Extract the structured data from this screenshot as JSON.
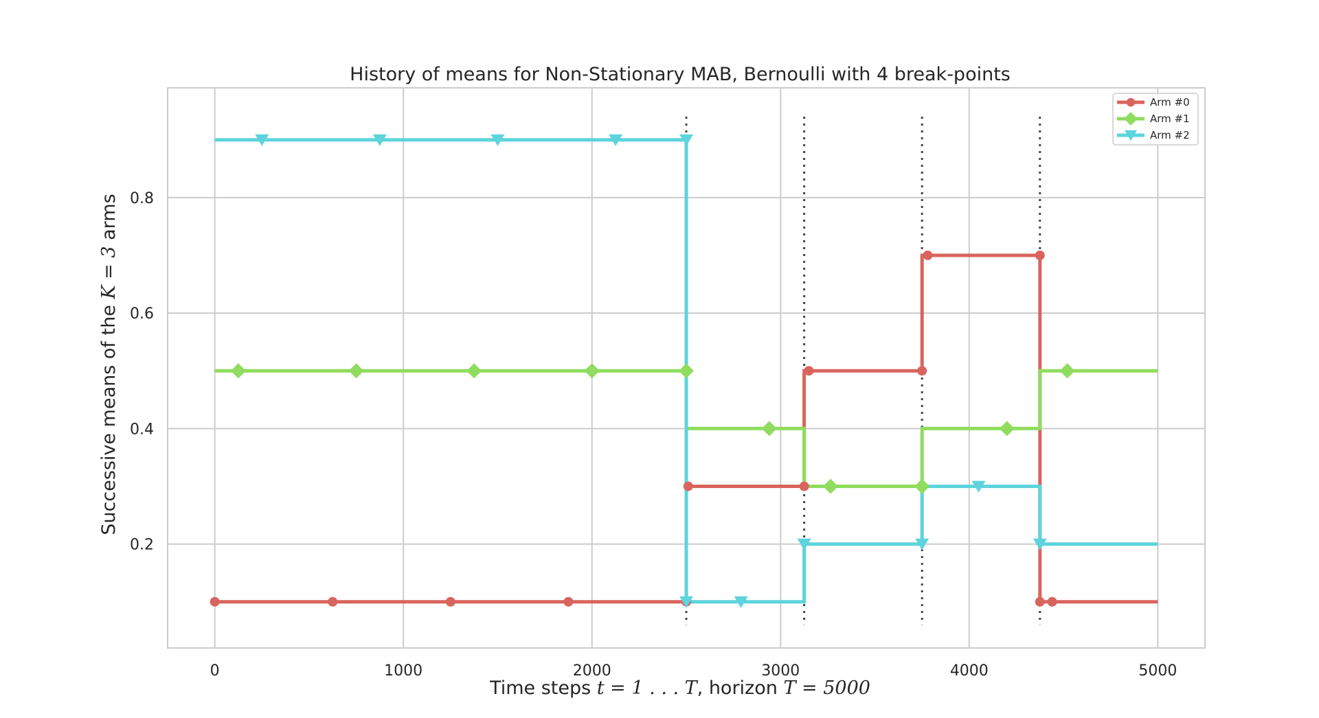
{
  "chart_data": {
    "type": "line",
    "title": "History of means for Non-Stationary MAB, Bernoulli with 4 break-points",
    "xlabel": {
      "prefix": "Time steps ",
      "math1": "t = 1 . . . T",
      "middle": ", horizon ",
      "math2": "T = 5000"
    },
    "ylabel": {
      "prefix": "Successive means of the ",
      "math": "K = 3",
      "suffix": " arms"
    },
    "xlim": [
      -250,
      5250
    ],
    "ylim": [
      0.02,
      0.99
    ],
    "xticks": [
      0,
      1000,
      2000,
      3000,
      4000,
      5000
    ],
    "xtick_labels": [
      "0",
      "1000",
      "2000",
      "3000",
      "4000",
      "5000"
    ],
    "yticks": [
      0.2,
      0.4,
      0.6,
      0.8
    ],
    "ytick_labels": [
      "0.2",
      "0.4",
      "0.6",
      "0.8"
    ],
    "grid": true,
    "legend_position": "top-right",
    "breakpoints": [
      2500,
      3125,
      3750,
      4375
    ],
    "breakpoint_range": [
      0.06,
      0.94
    ],
    "series": [
      {
        "name": "Arm #0",
        "color": "#d9645e",
        "marker": "circle",
        "points": [
          [
            0,
            0.1
          ],
          [
            2500,
            0.1
          ],
          [
            2500,
            0.3
          ],
          [
            3125,
            0.3
          ],
          [
            3125,
            0.5
          ],
          [
            3750,
            0.5
          ],
          [
            3750,
            0.7
          ],
          [
            4375,
            0.7
          ],
          [
            4375,
            0.1
          ],
          [
            5000,
            0.1
          ]
        ],
        "markers": [
          [
            0,
            0.1
          ],
          [
            625,
            0.1
          ],
          [
            1250,
            0.1
          ],
          [
            1875,
            0.1
          ],
          [
            2500,
            0.1
          ],
          [
            2510,
            0.3
          ],
          [
            3125,
            0.3
          ],
          [
            3150,
            0.5
          ],
          [
            3750,
            0.5
          ],
          [
            3780,
            0.7
          ],
          [
            4375,
            0.7
          ],
          [
            4375,
            0.1
          ],
          [
            4440,
            0.1
          ]
        ]
      },
      {
        "name": "Arm #1",
        "color": "#8fdc5e",
        "marker": "diamond",
        "points": [
          [
            0,
            0.5
          ],
          [
            2500,
            0.5
          ],
          [
            2500,
            0.4
          ],
          [
            3125,
            0.4
          ],
          [
            3125,
            0.3
          ],
          [
            3750,
            0.3
          ],
          [
            3750,
            0.4
          ],
          [
            4375,
            0.4
          ],
          [
            4375,
            0.5
          ],
          [
            5000,
            0.5
          ]
        ],
        "markers": [
          [
            125,
            0.5
          ],
          [
            750,
            0.5
          ],
          [
            1375,
            0.5
          ],
          [
            2000,
            0.5
          ],
          [
            2500,
            0.5
          ],
          [
            2940,
            0.4
          ],
          [
            3265,
            0.3
          ],
          [
            3750,
            0.3
          ],
          [
            4200,
            0.4
          ],
          [
            4520,
            0.5
          ]
        ]
      },
      {
        "name": "Arm #2",
        "color": "#5dd4dc",
        "marker": "triangle-down",
        "points": [
          [
            0,
            0.9
          ],
          [
            2500,
            0.9
          ],
          [
            2500,
            0.1
          ],
          [
            3125,
            0.1
          ],
          [
            3125,
            0.2
          ],
          [
            3750,
            0.2
          ],
          [
            3750,
            0.3
          ],
          [
            4375,
            0.3
          ],
          [
            4375,
            0.2
          ],
          [
            5000,
            0.2
          ]
        ],
        "markers": [
          [
            250,
            0.9
          ],
          [
            875,
            0.9
          ],
          [
            1500,
            0.9
          ],
          [
            2125,
            0.9
          ],
          [
            2500,
            0.9
          ],
          [
            2500,
            0.1
          ],
          [
            2790,
            0.1
          ],
          [
            3125,
            0.2
          ],
          [
            3750,
            0.2
          ],
          [
            4050,
            0.3
          ],
          [
            4375,
            0.2
          ]
        ]
      }
    ]
  }
}
